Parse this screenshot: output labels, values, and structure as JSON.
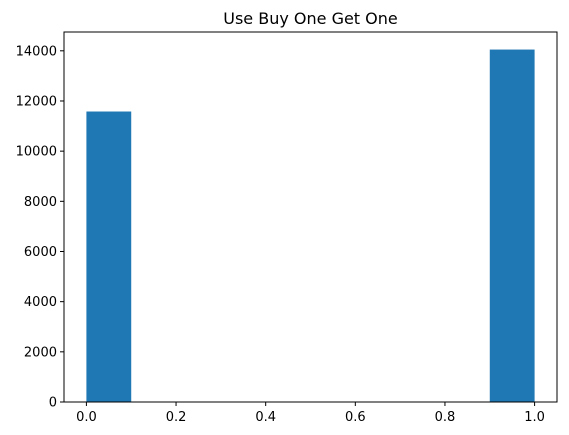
{
  "chart_data": {
    "type": "bar",
    "title": "Use Buy One Get One",
    "xlabel": "",
    "ylabel": "",
    "bars": [
      {
        "x_start": 0.0,
        "x_end": 0.1,
        "value": 11580
      },
      {
        "x_start": 0.9,
        "x_end": 1.0,
        "value": 14050
      }
    ],
    "xlim": [
      -0.05,
      1.05
    ],
    "ylim": [
      0,
      14750
    ],
    "xticks": [
      0.0,
      0.2,
      0.4,
      0.6,
      0.8,
      1.0
    ],
    "xtick_labels": [
      "0.0",
      "0.2",
      "0.4",
      "0.6",
      "0.8",
      "1.0"
    ],
    "yticks": [
      0,
      2000,
      4000,
      6000,
      8000,
      10000,
      12000,
      14000
    ],
    "ytick_labels": [
      "0",
      "2000",
      "4000",
      "6000",
      "8000",
      "10000",
      "12000",
      "14000"
    ],
    "grid": false,
    "legend": "none",
    "bar_color": "#1f77b4"
  }
}
